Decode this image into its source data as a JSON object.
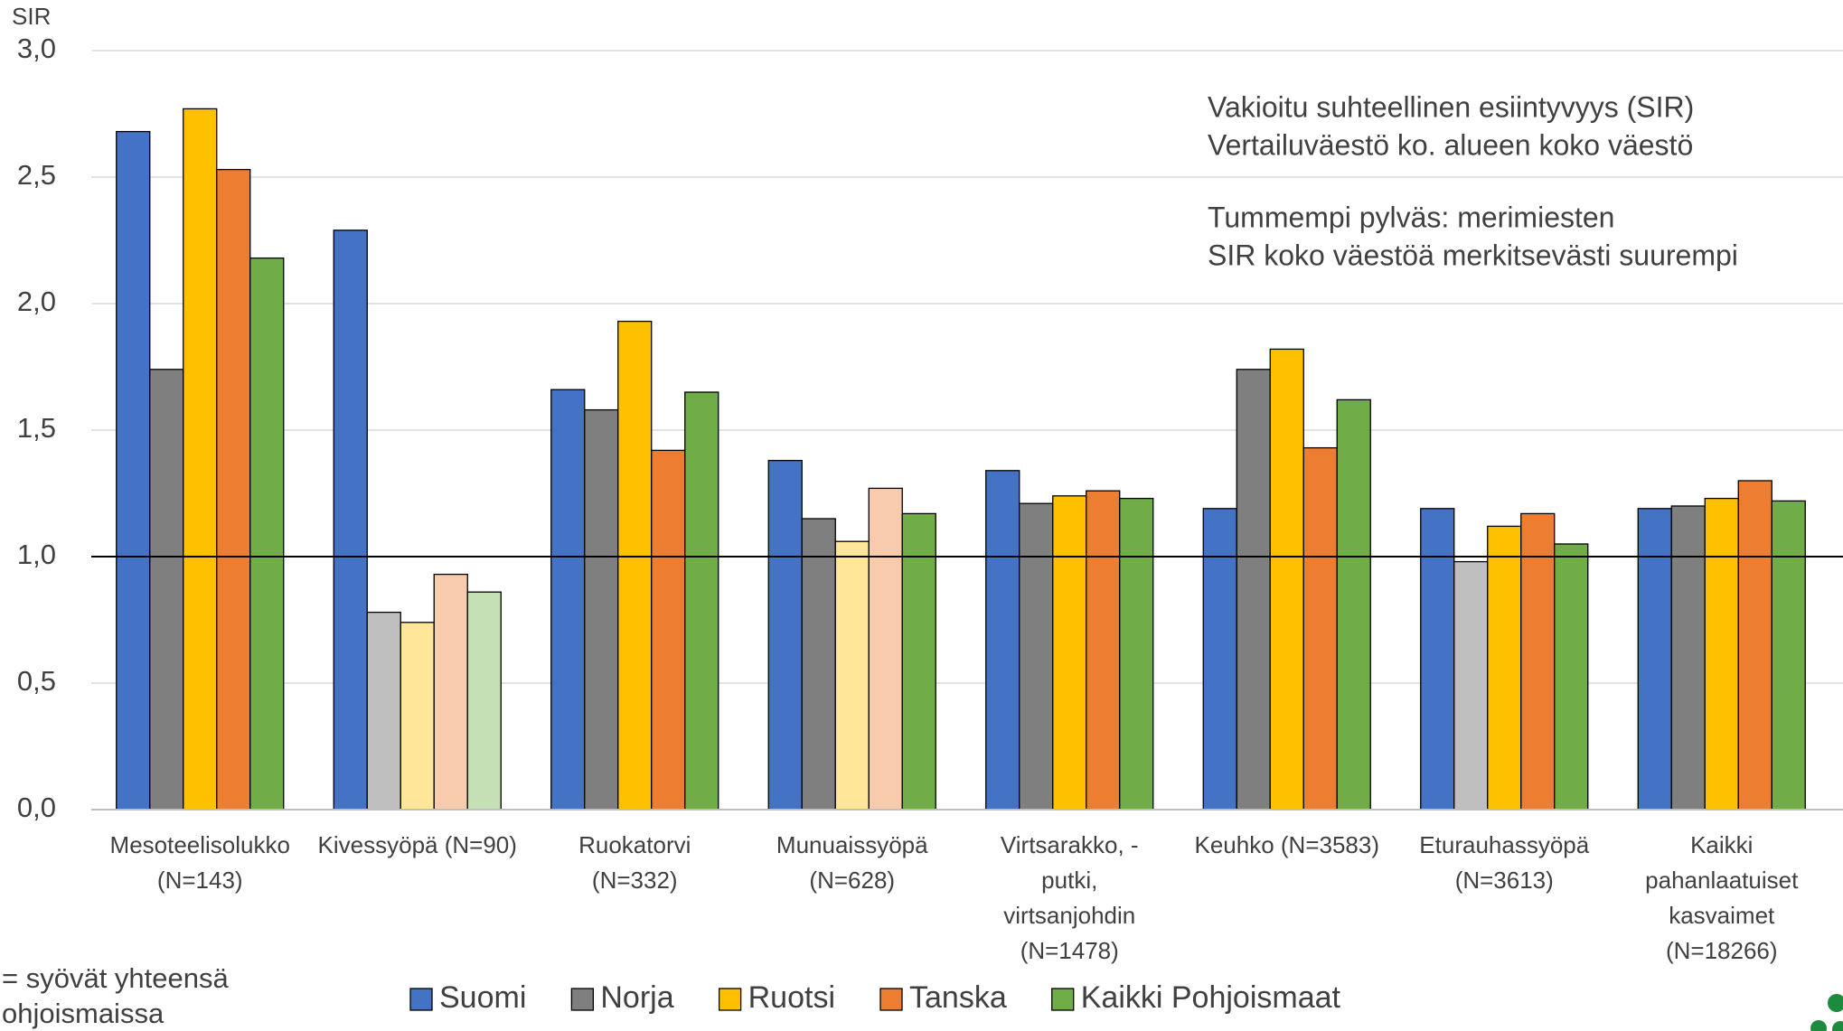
{
  "chart_data": {
    "type": "bar",
    "ylabel": "SIR",
    "categories": [
      [
        "Mesoteelisolukko",
        "(N=143)"
      ],
      [
        "Kivessyöpä (N=90)"
      ],
      [
        "Ruokatorvi",
        "(N=332)"
      ],
      [
        "Munuaissyöpä",
        "(N=628)"
      ],
      [
        "Virtsarakko, -",
        "putki,",
        "virtsanjohdin",
        "(N=1478)"
      ],
      [
        "Keuhko (N=3583)"
      ],
      [
        "Eturauhassyöpä",
        "(N=3613)"
      ],
      [
        "Kaikki",
        "pahanlaatuiset",
        "kasvaimet",
        "(N=18266)"
      ]
    ],
    "series": [
      {
        "name": "Suomi",
        "color": "#4472c4",
        "values": [
          2.68,
          2.29,
          1.66,
          1.38,
          1.34,
          1.19,
          1.19,
          1.19
        ],
        "colors": [
          "#4472c4",
          "#4472c4",
          "#4472c4",
          "#4472c4",
          "#4472c4",
          "#4472c4",
          "#4472c4",
          "#4472c4"
        ]
      },
      {
        "name": "Norja",
        "color": "#7f7f7f",
        "values": [
          1.74,
          0.78,
          1.58,
          1.15,
          1.21,
          1.74,
          0.98,
          1.2
        ],
        "colors": [
          "#7f7f7f",
          "#bfbfbf",
          "#7f7f7f",
          "#7f7f7f",
          "#7f7f7f",
          "#7f7f7f",
          "#bfbfbf",
          "#7f7f7f"
        ]
      },
      {
        "name": "Ruotsi",
        "color": "#ffc000",
        "values": [
          2.77,
          0.74,
          1.93,
          1.06,
          1.24,
          1.82,
          1.12,
          1.23
        ],
        "colors": [
          "#ffc000",
          "#ffe699",
          "#ffc000",
          "#ffe699",
          "#ffc000",
          "#ffc000",
          "#ffc000",
          "#ffc000"
        ]
      },
      {
        "name": "Tanska",
        "color": "#ed7d31",
        "values": [
          2.53,
          0.93,
          1.42,
          1.27,
          1.26,
          1.43,
          1.17,
          1.3
        ],
        "colors": [
          "#ed7d31",
          "#f8cbad",
          "#ed7d31",
          "#f8cbad",
          "#ed7d31",
          "#ed7d31",
          "#ed7d31",
          "#ed7d31"
        ]
      },
      {
        "name": "Kaikki Pohjoismaat",
        "color": "#70ad47",
        "values": [
          2.18,
          0.86,
          1.65,
          1.17,
          1.23,
          1.62,
          1.05,
          1.22
        ],
        "colors": [
          "#70ad47",
          "#c5e0b4",
          "#70ad47",
          "#70ad47",
          "#70ad47",
          "#70ad47",
          "#70ad47",
          "#70ad47"
        ]
      }
    ],
    "ylim": [
      0,
      3
    ],
    "yticks": [
      {
        "value": 0,
        "label": "0,0"
      },
      {
        "value": 0.5,
        "label": "0,5"
      },
      {
        "value": 1,
        "label": "1,0"
      },
      {
        "value": 1.5,
        "label": "1,5"
      },
      {
        "value": 2,
        "label": "2,0"
      },
      {
        "value": 2.5,
        "label": "2,5"
      },
      {
        "value": 3,
        "label": "3,0"
      }
    ],
    "grid": true,
    "reference_line": 1,
    "annotations": [
      "Vakioitu suhteellinen esiintyvyys (SIR)",
      "Vertailuväestö ko. alueen koko väestö",
      "Tummempi pylväs: merimiesten",
      "SIR koko väestöä merkitsevästi suurempi"
    ],
    "footnote": [
      "= syövät yhteensä",
      "ohjoismaissa"
    ],
    "legend": "bottom"
  }
}
